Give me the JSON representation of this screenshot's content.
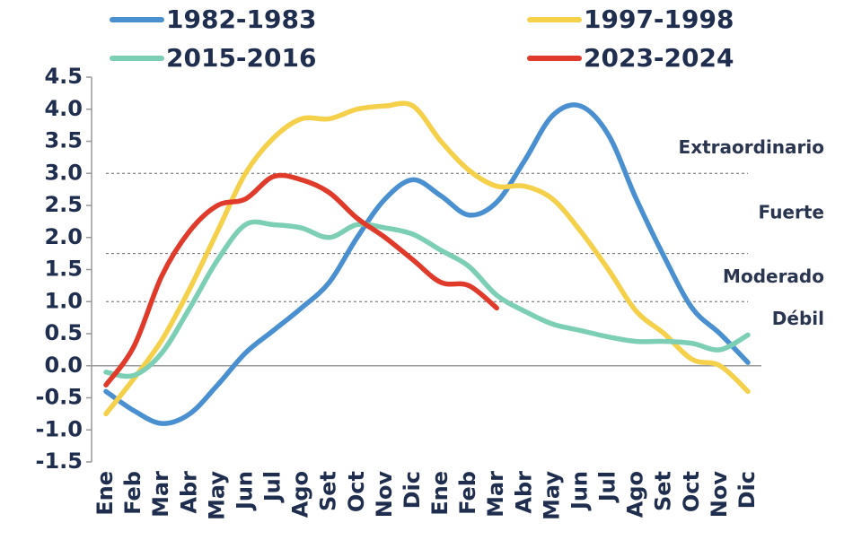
{
  "chart_data": {
    "type": "line",
    "categories": [
      "Ene",
      "Feb",
      "Mar",
      "Abr",
      "May",
      "Jun",
      "Jul",
      "Ago",
      "Set",
      "Oct",
      "Nov",
      "Dic",
      "Ene",
      "Feb",
      "Mar",
      "Abr",
      "May",
      "Jun",
      "Jul",
      "Ago",
      "Set",
      "Oct",
      "Nov",
      "Dic"
    ],
    "series": [
      {
        "name": "1982-1983",
        "color": "#4a90d0",
        "values": [
          -0.4,
          -0.7,
          -0.9,
          -0.75,
          -0.3,
          0.2,
          0.55,
          0.9,
          1.3,
          2.0,
          2.6,
          2.9,
          2.65,
          2.35,
          2.55,
          3.2,
          3.9,
          4.05,
          3.6,
          2.6,
          1.7,
          0.9,
          0.5,
          0.05
        ]
      },
      {
        "name": "1997-1998",
        "color": "#f5d04a",
        "values": [
          -0.75,
          -0.2,
          0.4,
          1.2,
          2.1,
          3.0,
          3.55,
          3.85,
          3.85,
          4.0,
          4.05,
          4.05,
          3.5,
          3.05,
          2.8,
          2.8,
          2.6,
          2.1,
          1.5,
          0.85,
          0.5,
          0.1,
          0.0,
          -0.4
        ]
      },
      {
        "name": "2015-2016",
        "color": "#7ccfb4",
        "values": [
          -0.1,
          -0.15,
          0.2,
          0.9,
          1.65,
          2.2,
          2.2,
          2.15,
          2.0,
          2.2,
          2.15,
          2.05,
          1.8,
          1.55,
          1.1,
          0.85,
          0.65,
          0.55,
          0.45,
          0.38,
          0.38,
          0.35,
          0.25,
          0.48
        ]
      },
      {
        "name": "2023-2024",
        "color": "#e03a2a",
        "values": [
          -0.3,
          0.3,
          1.4,
          2.1,
          2.5,
          2.6,
          2.95,
          2.9,
          2.7,
          2.3,
          2.0,
          1.65,
          1.3,
          1.25,
          0.9,
          null,
          null,
          null,
          null,
          null,
          null,
          null,
          null,
          null
        ]
      }
    ],
    "ylim": [
      -1.5,
      4.5
    ],
    "yticks": [
      4.5,
      {
        "value": 4,
        "label": "4.0"
      },
      3.5,
      {
        "value": 3,
        "label": "3.0"
      },
      2.5,
      {
        "value": 2,
        "label": "2.0"
      },
      1.5,
      {
        "value": 1,
        "label": "1.0"
      },
      0.5,
      {
        "value": 0,
        "label": "0.0"
      },
      -0.5,
      {
        "value": -1,
        "label": "-1.0"
      },
      -1.5
    ],
    "thresholds": [
      3.0,
      1.75,
      1.0
    ],
    "threshold_labels": [
      "Extraordinario",
      "Fuerte",
      "Moderado",
      "Débil"
    ]
  }
}
